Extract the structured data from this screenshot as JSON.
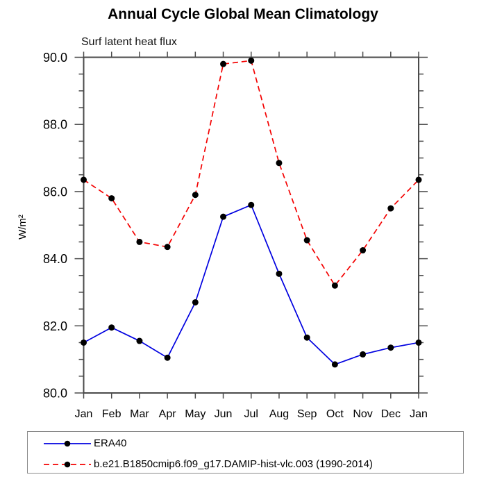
{
  "chart_data": {
    "type": "line",
    "title": "Annual Cycle Global Mean Climatology",
    "subtitle": "Surf latent heat flux",
    "xlabel": "",
    "ylabel": "W/m²",
    "categories": [
      "Jan",
      "Feb",
      "Mar",
      "Apr",
      "May",
      "Jun",
      "Jul",
      "Aug",
      "Sep",
      "Oct",
      "Nov",
      "Dec",
      "Jan"
    ],
    "ylim": [
      80.0,
      90.0
    ],
    "ytick_major_step": 2.0,
    "ytick_minor_step": 0.5,
    "ytick_labels": [
      "80.0",
      "82.0",
      "84.0",
      "86.0",
      "88.0",
      "90.0"
    ],
    "grid": false,
    "legend_position": "bottom-left-box",
    "axis_color": "#4a4a4a",
    "text_color": "#000000",
    "marker": {
      "shape": "circle",
      "color": "#000000",
      "radius": 4.5
    },
    "series": [
      {
        "name": "ERA40",
        "color": "#0000e0",
        "line_style": "solid",
        "values": [
          81.5,
          81.95,
          81.55,
          81.05,
          82.7,
          85.25,
          85.6,
          83.55,
          81.65,
          80.85,
          81.15,
          81.35,
          81.5
        ]
      },
      {
        "name": "b.e21.B1850cmip6.f09_g17.DAMIP-hist-vlc.003 (1990-2014)",
        "color": "#f40000",
        "line_style": "dashed",
        "values": [
          86.35,
          85.8,
          84.5,
          84.35,
          85.9,
          89.8,
          89.9,
          86.85,
          84.55,
          83.2,
          84.25,
          85.5,
          86.35
        ]
      }
    ]
  }
}
